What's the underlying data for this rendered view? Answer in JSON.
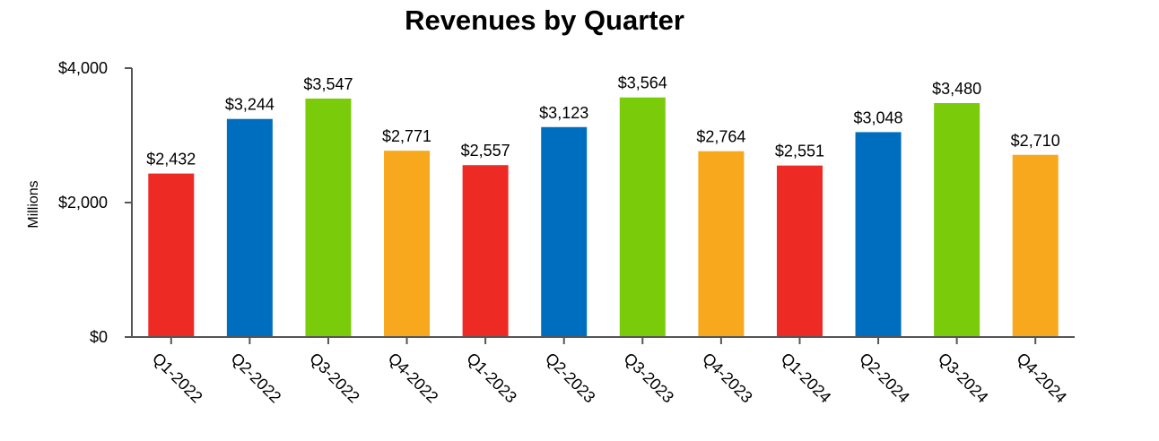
{
  "chart_data": {
    "type": "bar",
    "title": "Revenues by Quarter",
    "xlabel": "",
    "ylabel": "Millions",
    "ylim": [
      0,
      4000
    ],
    "yticks": [
      0,
      2000,
      4000
    ],
    "ytick_labels": [
      "$0",
      "$2,000",
      "$4,000"
    ],
    "grid": false,
    "legend": "none",
    "categories": [
      "Q1-2022",
      "Q2-2022",
      "Q3-2022",
      "Q4-2022",
      "Q1-2023",
      "Q2-2023",
      "Q3-2023",
      "Q4-2023",
      "Q1-2024",
      "Q2-2024",
      "Q3-2024",
      "Q4-2024"
    ],
    "values": [
      2432,
      3244,
      3547,
      2771,
      2557,
      3123,
      3564,
      2764,
      2551,
      3048,
      3480,
      2710
    ],
    "data_labels": [
      "$2,432",
      "$3,244",
      "$3,547",
      "$2,771",
      "$2,557",
      "$3,123",
      "$3,564",
      "$2,764",
      "$2,551",
      "$3,048",
      "$3,480",
      "$2,710"
    ],
    "bar_colors": [
      "#EE2A24",
      "#006EBF",
      "#7ACC0A",
      "#F7A81C",
      "#EE2A24",
      "#006EBF",
      "#7ACC0A",
      "#F7A81C",
      "#EE2A24",
      "#006EBF",
      "#7ACC0A",
      "#F7A81C"
    ]
  }
}
